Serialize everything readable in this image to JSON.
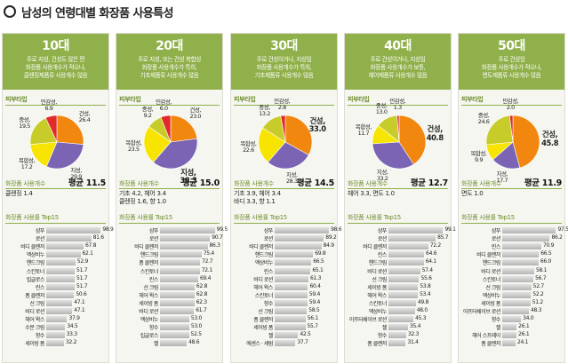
{
  "title": "남성의 연령대별 화장품 사용특성",
  "pie_colors": {
    "skin": "#7b64b4",
    "dry": "#f2870f",
    "normal": "#c8cc2a",
    "sensitive": "#e12b2b",
    "combo": "#f7e400"
  },
  "columns": [
    {
      "age": "10대",
      "header_color": "#8fb04a",
      "desc": [
        "주로 지성, 건성도 많은 편",
        "화장품 사용개수가 적으나,",
        "클렌징제품류 사용개수 많음"
      ],
      "skin_type_label": "피부타입",
      "pie": [
        {
          "name": "건성",
          "value": 26.4,
          "color": "#f2870f"
        },
        {
          "name": "지성",
          "value": 29.9,
          "color": "#7b64b4"
        },
        {
          "name": "복합성",
          "value": 17.2,
          "color": "#f7e400"
        },
        {
          "name": "중성",
          "value": 19.5,
          "color": "#c8cc2a"
        },
        {
          "name": "민감성",
          "value": 6.9,
          "color": "#e12b2b"
        }
      ],
      "count_label": "화장품 사용개수",
      "average": "평균 11.5",
      "count_detail": [
        "클렌징 1.4"
      ],
      "top_label": "화장품 사용률 Top15",
      "top15": [
        {
          "name": "샴푸",
          "value": 98.9
        },
        {
          "name": "로션",
          "value": 81.6
        },
        {
          "name": "바디 클렌저",
          "value": 67.8
        },
        {
          "name": "액상비누",
          "value": 62.1
        },
        {
          "name": "핸드크림",
          "value": 52.9
        },
        {
          "name": "스킨토너",
          "value": 51.7
        },
        {
          "name": "립글로스",
          "value": 51.7
        },
        {
          "name": "린스",
          "value": 51.7
        },
        {
          "name": "폼 클렌저",
          "value": 50.6
        },
        {
          "name": "선 크림",
          "value": 47.1
        },
        {
          "name": "바디 로션",
          "value": 47.1
        },
        {
          "name": "헤어 왁스",
          "value": 37.9
        },
        {
          "name": "수분 크림",
          "value": 34.5
        },
        {
          "name": "향수",
          "value": 33.3
        },
        {
          "name": "세이빙 폼",
          "value": 32.2
        }
      ]
    },
    {
      "age": "20대",
      "header_color": "#8fb04a",
      "desc": [
        "주로 지성, 또는 건성 복합성",
        "화장품 사용개수가 특히,",
        "기초제품류 사용개수 많음"
      ],
      "skin_type_label": "피부타입",
      "pie": [
        {
          "name": "건성",
          "value": 23.0,
          "color": "#f2870f"
        },
        {
          "name": "지성",
          "value": 38.3,
          "color": "#7b64b4"
        },
        {
          "name": "복합성",
          "value": 23.5,
          "color": "#f7e400"
        },
        {
          "name": "중성",
          "value": 9.2,
          "color": "#c8cc2a"
        },
        {
          "name": "민감성",
          "value": 6.0,
          "color": "#e12b2b"
        }
      ],
      "count_label": "화장품 사용개수",
      "average": "평균 15.0",
      "count_detail": [
        "기초 4.2, 헤어 3.4",
        "클렌징 1.6, 향 1.0"
      ],
      "top_label": "화장품 사용률 Top15",
      "top15": [
        {
          "name": "샴푸",
          "value": 99.5
        },
        {
          "name": "로션",
          "value": 90.7
        },
        {
          "name": "바디 클렌저",
          "value": 86.3
        },
        {
          "name": "핸드크림",
          "value": 75.4
        },
        {
          "name": "폼 클렌저",
          "value": 72.7
        },
        {
          "name": "스킨토너",
          "value": 72.1
        },
        {
          "name": "린스",
          "value": 69.4
        },
        {
          "name": "선 크림",
          "value": 62.8
        },
        {
          "name": "헤어 왁스",
          "value": 62.8
        },
        {
          "name": "세이빙 폼",
          "value": 62.3
        },
        {
          "name": "바디 로션",
          "value": 61.7
        },
        {
          "name": "액상비누",
          "value": 53.0
        },
        {
          "name": "향수",
          "value": 53.0
        },
        {
          "name": "립글로스",
          "value": 52.5
        },
        {
          "name": "젤",
          "value": 48.6
        }
      ]
    },
    {
      "age": "30대",
      "header_color": "#8fb04a",
      "desc": [
        "주로 건성이거나, 지성임",
        "화장품 사용개수가 특히,",
        "기초제품류 사용개수 많음"
      ],
      "skin_type_label": "피부타입",
      "pie": [
        {
          "name": "건성",
          "value": 33.0,
          "color": "#f2870f"
        },
        {
          "name": "지성",
          "value": 28.3,
          "color": "#7b64b4"
        },
        {
          "name": "복합성",
          "value": 22.6,
          "color": "#f7e400"
        },
        {
          "name": "중성",
          "value": 13.2,
          "color": "#c8cc2a"
        },
        {
          "name": "민감성",
          "value": 2.8,
          "color": "#e12b2b"
        }
      ],
      "count_label": "화장품 사용개수",
      "average": "평균 14.5",
      "count_detail": [
        "기초 3.9, 헤어 3.4",
        "바디 3.3, 향 1.1"
      ],
      "top_label": "화장품 사용률 Top15",
      "top15": [
        {
          "name": "샴푸",
          "value": 98.6
        },
        {
          "name": "로션",
          "value": 89.2
        },
        {
          "name": "바디 클렌저",
          "value": 84.9
        },
        {
          "name": "핸드크림",
          "value": 69.8
        },
        {
          "name": "액상비누",
          "value": 66.5
        },
        {
          "name": "린스",
          "value": 65.1
        },
        {
          "name": "바디 로션",
          "value": 61.3
        },
        {
          "name": "헤어 왁스",
          "value": 60.4
        },
        {
          "name": "스킨토너",
          "value": 59.4
        },
        {
          "name": "향수",
          "value": 59.4
        },
        {
          "name": "선 크림",
          "value": 58.5
        },
        {
          "name": "폼 클렌저",
          "value": 56.1
        },
        {
          "name": "세이빙 폼",
          "value": 55.7
        },
        {
          "name": "젤",
          "value": 42.5
        },
        {
          "name": "에센스 · 세럼",
          "value": 37.7
        }
      ]
    },
    {
      "age": "40대",
      "header_color": "#8fb04a",
      "desc": [
        "주로 건성이거나, 지성임",
        "화장품 사용개수가 보통,",
        "헤어제품류 사용개수 많음"
      ],
      "skin_type_label": "피부타입",
      "pie": [
        {
          "name": "건성",
          "value": 40.8,
          "color": "#f2870f"
        },
        {
          "name": "지성",
          "value": 33.2,
          "color": "#7b64b4"
        },
        {
          "name": "복합성",
          "value": 11.7,
          "color": "#f7e400"
        },
        {
          "name": "중성",
          "value": 13.0,
          "color": "#c8cc2a"
        },
        {
          "name": "민감성",
          "value": 1.3,
          "color": "#e12b2b"
        }
      ],
      "count_label": "화장품 사용개수",
      "average": "평균 12.7",
      "count_detail": [
        "헤어 3.3, 면도 1.0"
      ],
      "top_label": "화장품 사용률 Top15",
      "top15": [
        {
          "name": "샴푸",
          "value": 99.1
        },
        {
          "name": "로션",
          "value": 85.7
        },
        {
          "name": "바디 클렌저",
          "value": 72.2
        },
        {
          "name": "린스",
          "value": 64.6
        },
        {
          "name": "핸드크림",
          "value": 64.1
        },
        {
          "name": "바디 로션",
          "value": 57.4
        },
        {
          "name": "선 크림",
          "value": 55.6
        },
        {
          "name": "세이빙 폼",
          "value": 53.8
        },
        {
          "name": "헤어 왁스",
          "value": 53.4
        },
        {
          "name": "스킨토너",
          "value": 49.8
        },
        {
          "name": "액상비누",
          "value": 48.0
        },
        {
          "name": "아프터쉐이브 로션",
          "value": 45.3
        },
        {
          "name": "젤",
          "value": 35.4
        },
        {
          "name": "향수",
          "value": 32.3
        },
        {
          "name": "폼 클렌저",
          "value": 31.4
        }
      ]
    },
    {
      "age": "50대",
      "header_color": "#8fb04a",
      "desc": [
        "주로 건성임",
        "화장품 사용개수가 적으나,",
        "면도제품류 사용개수 많음"
      ],
      "skin_type_label": "피부타입",
      "pie": [
        {
          "name": "건성",
          "value": 45.8,
          "color": "#f2870f"
        },
        {
          "name": "지성",
          "value": 17.7,
          "color": "#7b64b4"
        },
        {
          "name": "복합성",
          "value": 9.9,
          "color": "#f7e400"
        },
        {
          "name": "중성",
          "value": 24.6,
          "color": "#c8cc2a"
        },
        {
          "name": "민감성",
          "value": 2.0,
          "color": "#e12b2b"
        }
      ],
      "count_label": "화장품 사용개수",
      "average": "평균 11.9",
      "count_detail": [
        "면도 1.0"
      ],
      "top_label": "화장품 사용률 Top15",
      "top15": [
        {
          "name": "샴푸",
          "value": 97.5
        },
        {
          "name": "로션",
          "value": 86.2
        },
        {
          "name": "린스",
          "value": 70.9
        },
        {
          "name": "바디 클렌저",
          "value": 66.5
        },
        {
          "name": "핸드크림",
          "value": 66.0
        },
        {
          "name": "바디 로션",
          "value": 58.1
        },
        {
          "name": "스킨토너",
          "value": 56.7
        },
        {
          "name": "선 크림",
          "value": 52.7
        },
        {
          "name": "액상비누",
          "value": 52.2
        },
        {
          "name": "세이빙 폼",
          "value": 51.2
        },
        {
          "name": "아프터쉐이브 로션",
          "value": 48.3
        },
        {
          "name": "향수",
          "value": 34.0
        },
        {
          "name": "젤",
          "value": 26.1
        },
        {
          "name": "헤어 스프레이",
          "value": 26.1
        },
        {
          "name": "폼 클렌저",
          "value": 24.1
        }
      ]
    }
  ]
}
